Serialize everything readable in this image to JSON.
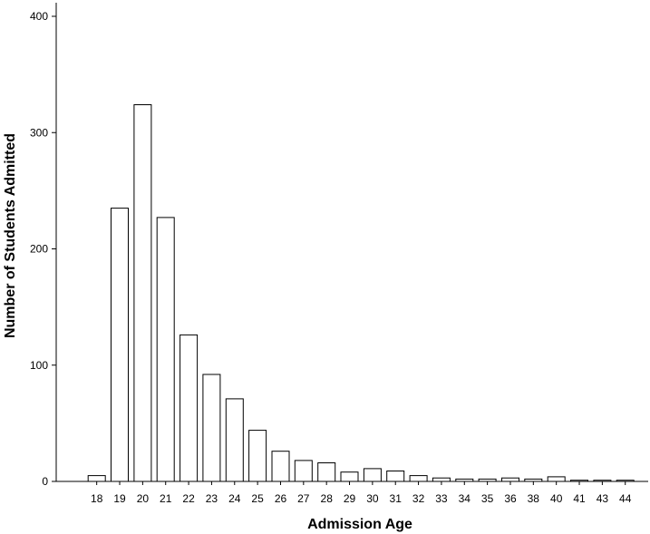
{
  "chart_data": {
    "type": "bar",
    "title": "",
    "xlabel": "Admission Age",
    "ylabel": "Number of Students Admitted",
    "ylim": [
      0,
      400
    ],
    "yticks": [
      0,
      100,
      200,
      300,
      400
    ],
    "grid": false,
    "categories": [
      "18",
      "19",
      "20",
      "21",
      "22",
      "23",
      "24",
      "25",
      "26",
      "27",
      "28",
      "29",
      "30",
      "31",
      "32",
      "33",
      "34",
      "35",
      "36",
      "38",
      "40",
      "41",
      "43",
      "44"
    ],
    "values": [
      5,
      235,
      324,
      227,
      126,
      92,
      71,
      44,
      26,
      18,
      16,
      8,
      11,
      9,
      5,
      3,
      2,
      2,
      3,
      2,
      4,
      1,
      1,
      1
    ],
    "colors": {
      "bar_fill": "#ffffff",
      "bar_stroke": "#000000"
    }
  }
}
